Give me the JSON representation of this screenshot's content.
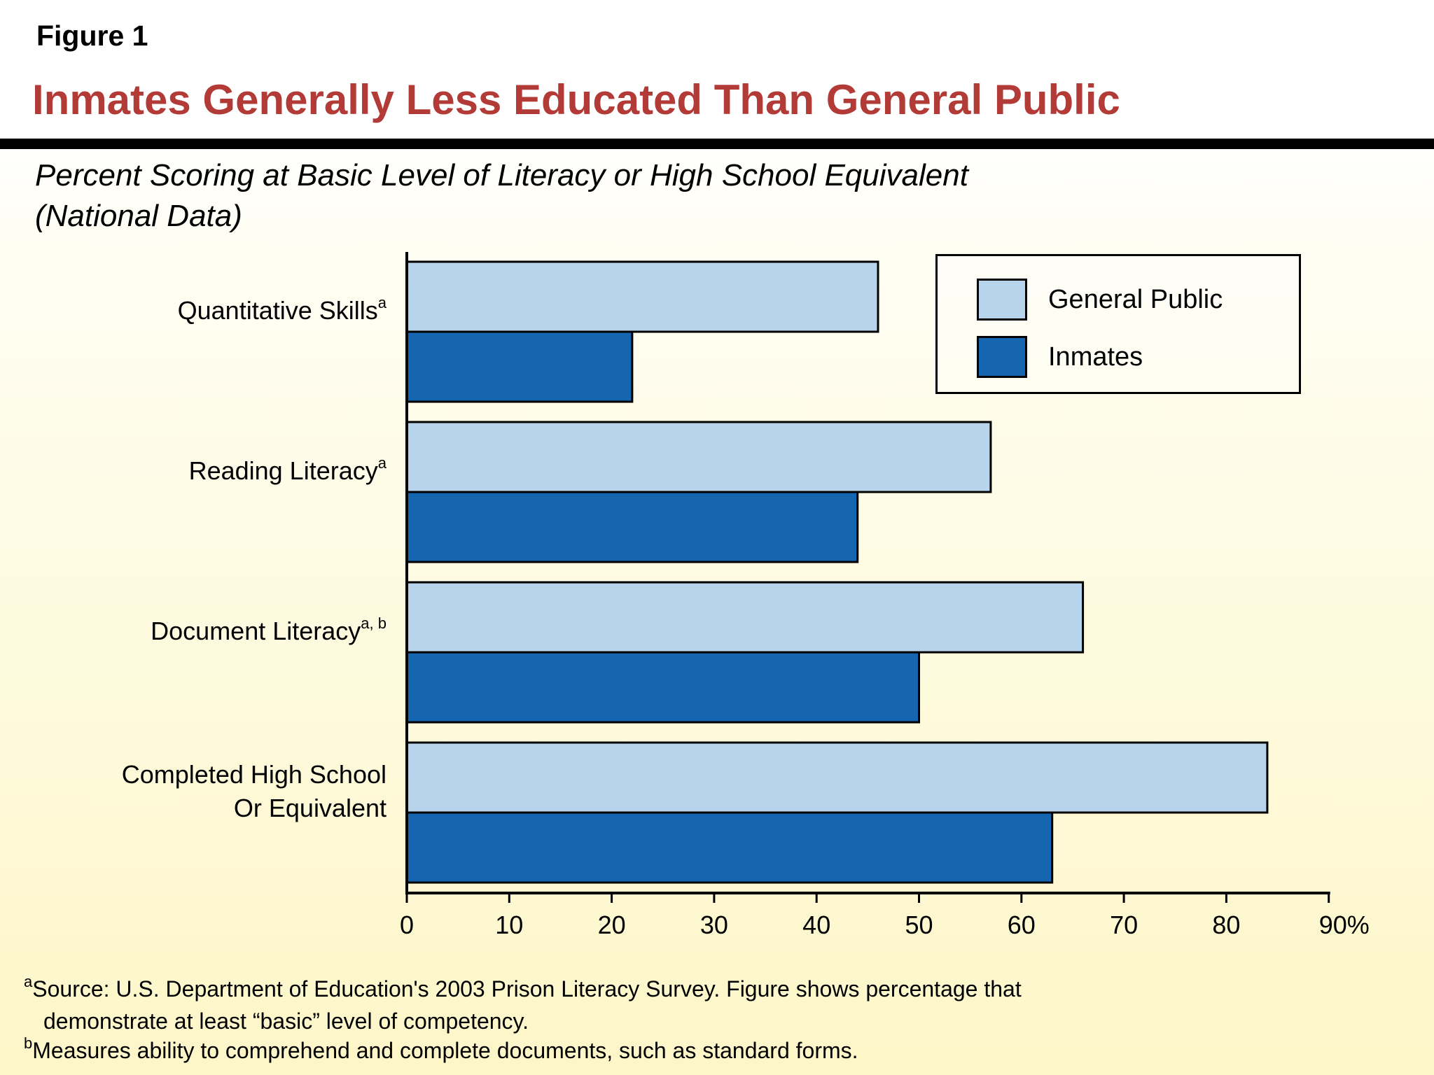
{
  "figure_label": "Figure 1",
  "title": "Inmates Generally Less Educated Than General Public",
  "subtitle": [
    "Percent Scoring at Basic Level of Literacy or High School Equivalent",
    "(National Data)"
  ],
  "colors": {
    "general_public": "#b8d4ec",
    "inmates": "#1665b0",
    "title": "#b23a37"
  },
  "chart_data": {
    "type": "bar",
    "orientation": "horizontal",
    "categories": [
      {
        "lines": [
          "Quantitative Skills"
        ],
        "footnote": "a"
      },
      {
        "lines": [
          "Reading Literacy"
        ],
        "footnote": "a"
      },
      {
        "lines": [
          "Document Literacy"
        ],
        "footnote": "a, b"
      },
      {
        "lines": [
          "Completed High School",
          "Or Equivalent"
        ],
        "footnote": ""
      }
    ],
    "series": [
      {
        "name": "General Public",
        "values": [
          46,
          57,
          66,
          84
        ]
      },
      {
        "name": "Inmates",
        "values": [
          22,
          44,
          50,
          63
        ]
      }
    ],
    "xlim": [
      0,
      90
    ],
    "xticks": [
      "0",
      "10",
      "20",
      "30",
      "40",
      "50",
      "60",
      "70",
      "80",
      "90%"
    ],
    "grid": false,
    "legend_position": "top-right"
  },
  "footnotes": [
    {
      "mark": "a",
      "lines": [
        "Source: U.S. Department of Education's 2003 Prison Literacy Survey. Figure shows percentage that",
        "demonstrate at least “basic” level of competency."
      ]
    },
    {
      "mark": "b",
      "lines": [
        "Measures ability to comprehend and complete documents, such as standard forms."
      ]
    }
  ]
}
